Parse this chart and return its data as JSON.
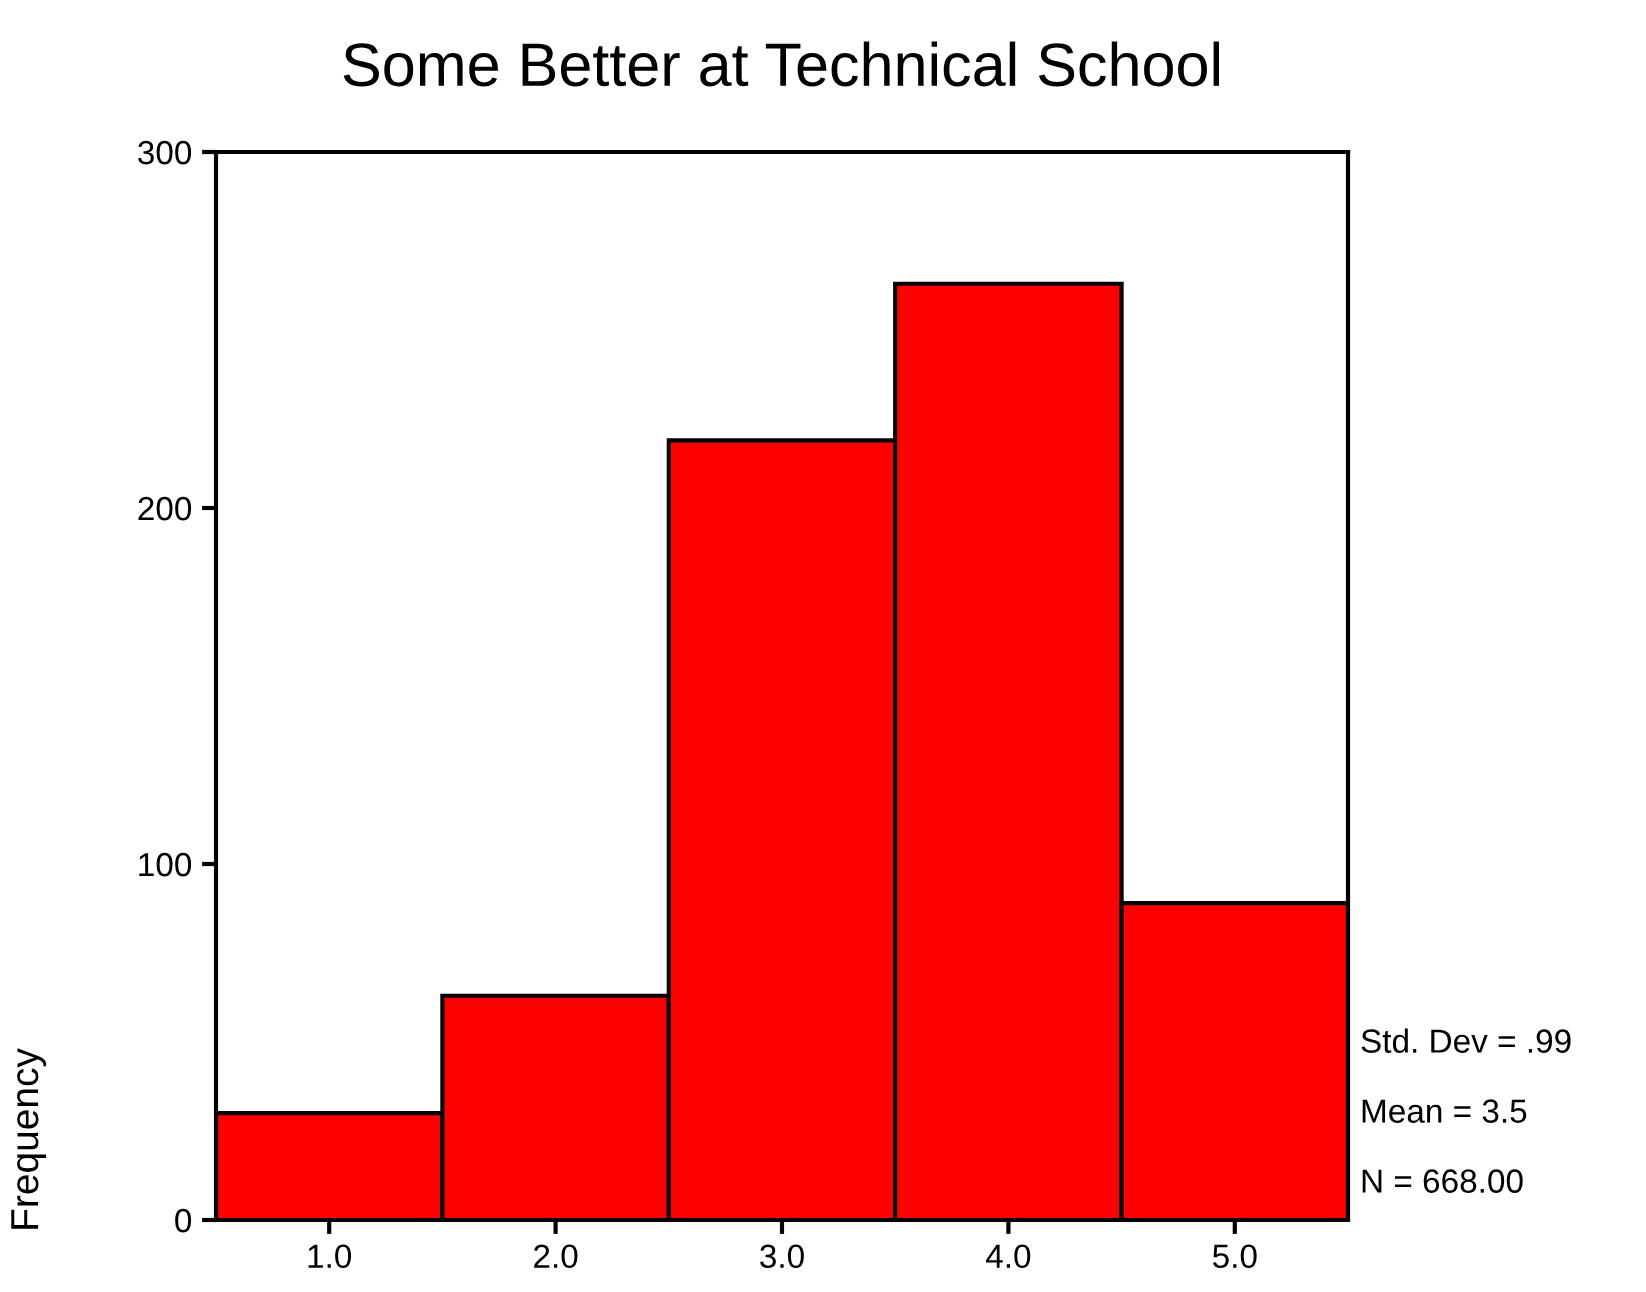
{
  "chart_data": {
    "type": "histogram",
    "title": "Some Better at Technical School",
    "ylabel": "Frequency",
    "bins": [
      0.5,
      1.5,
      2.5,
      3.5,
      4.5,
      5.5
    ],
    "values": [
      30,
      63,
      219,
      263,
      89
    ],
    "color": "#ff0000",
    "xlim": [
      0.5,
      5.5
    ],
    "ylim": [
      0,
      300
    ],
    "xticks": [
      {
        "value": 1,
        "label": "1.0"
      },
      {
        "value": 2,
        "label": "2.0"
      },
      {
        "value": 3,
        "label": "3.0"
      },
      {
        "value": 4,
        "label": "4.0"
      },
      {
        "value": 5,
        "label": "5.0"
      }
    ],
    "yticks": [
      0,
      100,
      200,
      300
    ],
    "grid": false,
    "annotations": [
      "Std. Dev = .99",
      "Mean = 3.5",
      "N = 668.00"
    ]
  }
}
